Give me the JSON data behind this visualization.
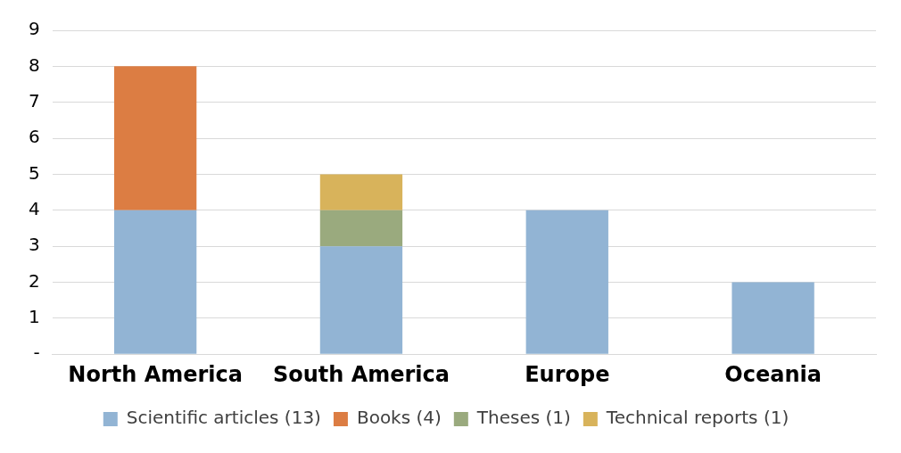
{
  "chart_data": {
    "type": "bar",
    "stacked": true,
    "categories": [
      "North America",
      "South America",
      "Europe",
      "Oceania"
    ],
    "series": [
      {
        "name": "Scientific articles (13)",
        "color": "#92b4d4",
        "values": [
          4,
          3,
          4,
          2
        ]
      },
      {
        "name": "Books (4)",
        "color": "#dc7d43",
        "values": [
          4,
          0,
          0,
          0
        ]
      },
      {
        "name": "Theses (1)",
        "color": "#9aaa7e",
        "values": [
          0,
          1,
          0,
          0
        ]
      },
      {
        "name": "Technical reports (1)",
        "color": "#d8b35b",
        "values": [
          0,
          1,
          0,
          0
        ]
      }
    ],
    "ylim": [
      0,
      9
    ],
    "yticks": [
      {
        "value": 0,
        "label": "-"
      },
      1,
      2,
      3,
      4,
      5,
      6,
      7,
      8,
      9
    ],
    "grid": "y",
    "legend": "bottom"
  }
}
